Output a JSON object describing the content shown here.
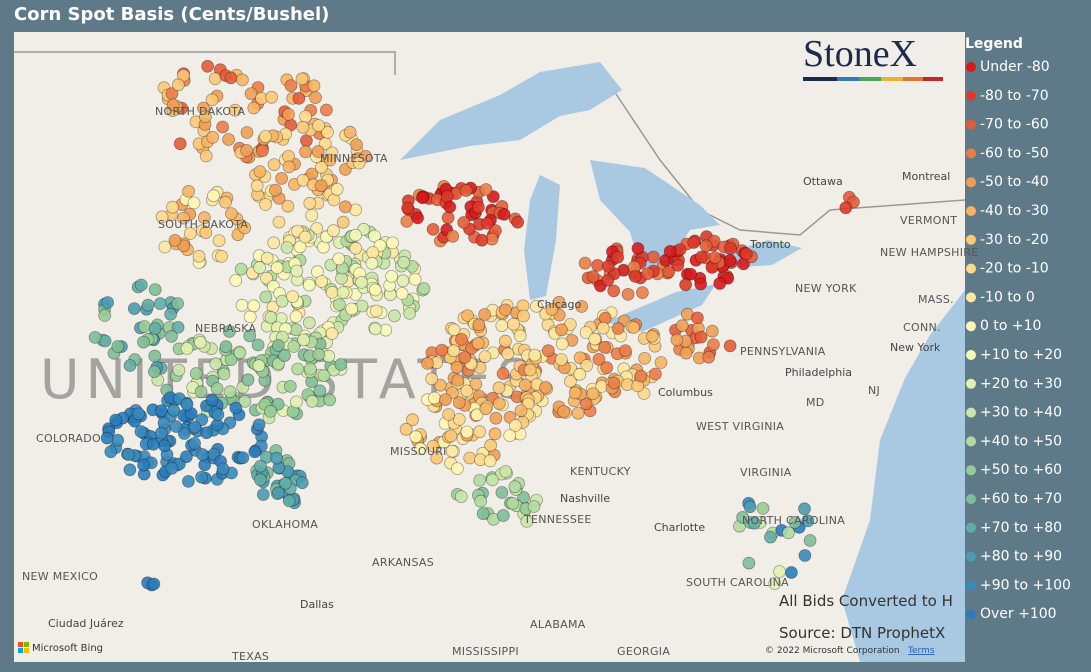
{
  "header": {
    "title": "Corn Spot Basis (Cents/Bushel)"
  },
  "logo": "StoneX",
  "legend": {
    "title": "Legend",
    "items": [
      {
        "label": "Under -80",
        "color": "#d7191c"
      },
      {
        "label": "-80 to -70",
        "color": "#dc3a2a"
      },
      {
        "label": "-70 to -60",
        "color": "#e35c38"
      },
      {
        "label": "-60 to -50",
        "color": "#ea7d47"
      },
      {
        "label": "-50 to -40",
        "color": "#f09e55"
      },
      {
        "label": "-40 to -30",
        "color": "#f6b463"
      },
      {
        "label": "-30 to -20",
        "color": "#fbc877"
      },
      {
        "label": "-20 to -10",
        "color": "#fdd98c"
      },
      {
        "label": "-10 to 0",
        "color": "#fee8a0"
      },
      {
        "label": "0 to +10",
        "color": "#fff7b5"
      },
      {
        "label": "+10 to +20",
        "color": "#f4fab8"
      },
      {
        "label": "+20 to +30",
        "color": "#e1f1b0"
      },
      {
        "label": "+30 to +40",
        "color": "#cbe6a8"
      },
      {
        "label": "+40 to +50",
        "color": "#b3da9f"
      },
      {
        "label": "+50 to +60",
        "color": "#98cc97"
      },
      {
        "label": "+60 to +70",
        "color": "#7fbd98"
      },
      {
        "label": "+70 to +80",
        "color": "#63aca6"
      },
      {
        "label": "+80 to +90",
        "color": "#4a9bb1"
      },
      {
        "label": "+90 to +100",
        "color": "#3a89bb"
      },
      {
        "label": "Over +100",
        "color": "#2b7bba"
      }
    ]
  },
  "map_labels": [
    "NORTH DAKOTA",
    "MINNESOTA",
    "SOUTH DAKOTA",
    "NEBRASKA",
    "UNITED STATES",
    "COLORADO",
    "OKLAHOMA",
    "NEW MEXICO",
    "TEXAS",
    "MISSOURI",
    "ARKANSAS",
    "MISSISSIPPI",
    "ALABAMA",
    "GEORGIA",
    "TENNESSEE",
    "KENTUCKY",
    "WEST VIRGINIA",
    "VIRGINIA",
    "NORTH CAROLINA",
    "SOUTH CAROLINA",
    "PENNSYLVANIA",
    "NEW YORK",
    "Ottawa",
    "Montreal",
    "VERMONT",
    "NEW HAMPSHIRE",
    "MASS.",
    "CONN.",
    "New York",
    "Philadelphia",
    "MD",
    "NJ",
    "Chicago",
    "Columbus",
    "Nashville",
    "Charlotte",
    "Dallas",
    "Ciudad Juárez",
    "Toronto"
  ],
  "notes": [
    "All Bids Converted to H",
    "Source: DTN ProphetX"
  ],
  "attribution": {
    "copyright": "© 2022 Microsoft Corporation",
    "terms": "Terms",
    "bing": "Microsoft Bing"
  }
}
